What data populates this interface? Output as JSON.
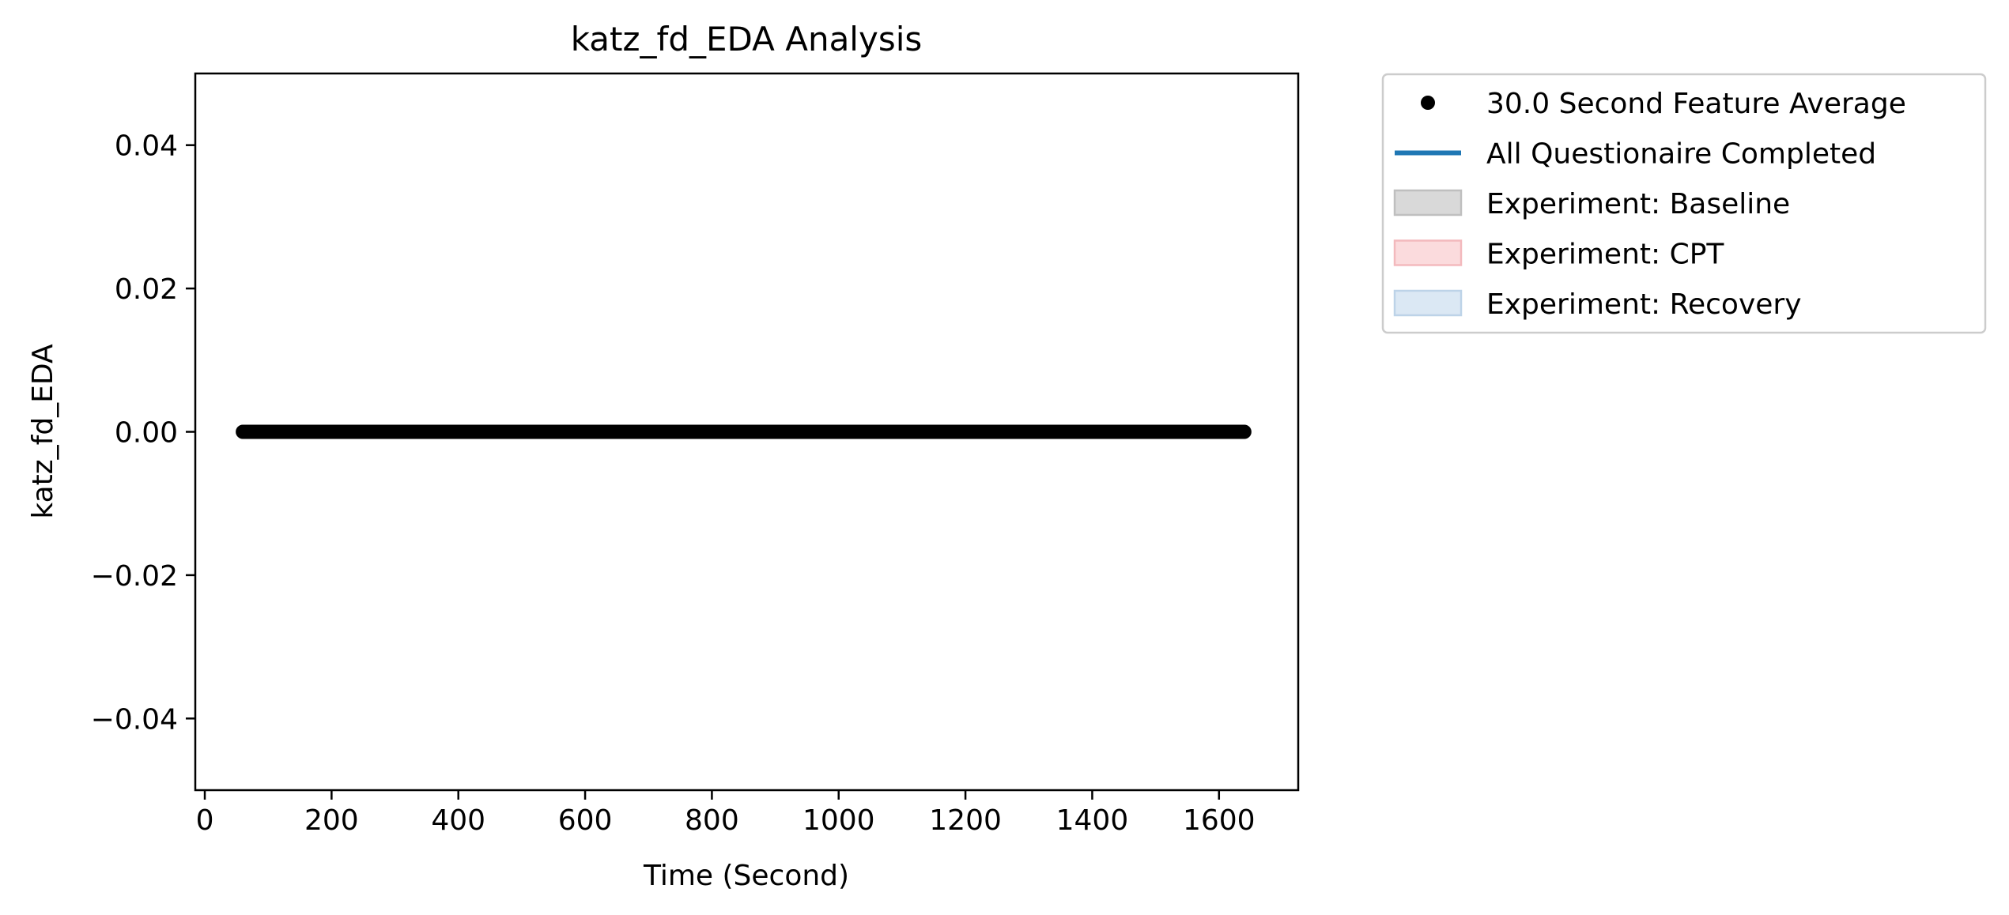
{
  "chart_data": {
    "type": "scatter",
    "title": "katz_fd_EDA Analysis",
    "xlabel": "Time (Second)",
    "ylabel": "katz_fd_EDA",
    "xlim": [
      -15,
      1725
    ],
    "ylim": [
      -0.05,
      0.05
    ],
    "x_ticks": [
      0,
      200,
      400,
      600,
      800,
      1000,
      1200,
      1400,
      1600
    ],
    "x_tick_labels": [
      "0",
      "200",
      "400",
      "600",
      "800",
      "1000",
      "1200",
      "1400",
      "1600"
    ],
    "y_ticks": [
      0.04,
      0.02,
      0.0,
      -0.02,
      -0.04
    ],
    "y_tick_labels": [
      "0.04",
      "0.02",
      "0.00",
      "−0.02",
      "−0.04"
    ],
    "grid": false,
    "legend_position": "outside-top-right",
    "series": [
      {
        "name": "30.0 Second Feature Average",
        "kind": "scatter",
        "color": "#000000",
        "x_start": 60,
        "x_end": 1640,
        "x_step": 2,
        "y": 0.0
      }
    ],
    "legend": [
      {
        "label": "30.0 Second Feature Average",
        "kind": "marker",
        "color": "#000000"
      },
      {
        "label": "All Questionaire Completed",
        "kind": "line",
        "color": "#1f77b4"
      },
      {
        "label": "Experiment: Baseline",
        "kind": "patch",
        "color": "#d9d9d9",
        "edge": "#bfbfbf"
      },
      {
        "label": "Experiment: CPT",
        "kind": "patch",
        "color": "#fbdbdd",
        "edge": "#f3b9bd"
      },
      {
        "label": "Experiment: Recovery",
        "kind": "patch",
        "color": "#dbe8f4",
        "edge": "#bdd3e8"
      }
    ]
  }
}
